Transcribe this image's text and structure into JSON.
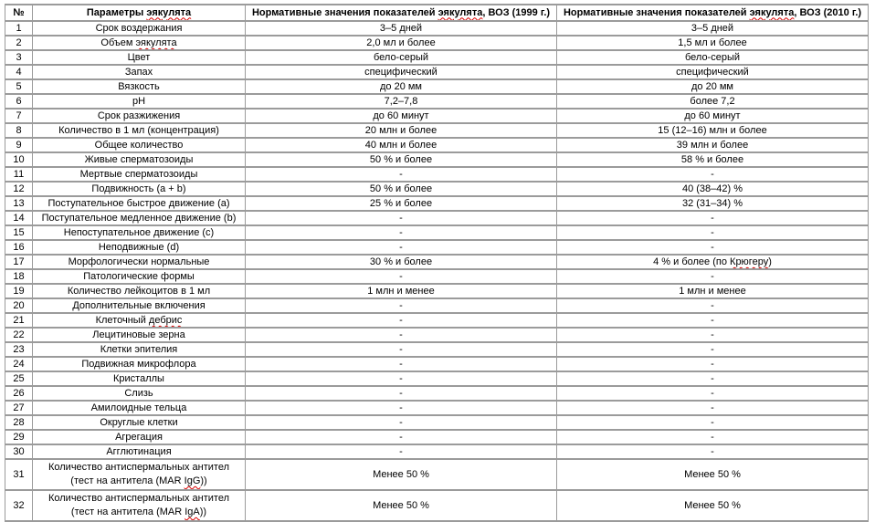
{
  "table": {
    "headers": {
      "num": "№",
      "param": "Параметры эякулята",
      "who1999": "Нормативные значения показателей эякулята, ВОЗ (1999 г.)",
      "who2010": "Нормативные значения показателей эякулята, ВОЗ (2010 г.)"
    },
    "rows": [
      {
        "num": "1",
        "param": "Срок воздержания",
        "who1999": "3–5 дней",
        "who2010": "3–5 дней"
      },
      {
        "num": "2",
        "param": "Объем эякулята",
        "who1999": "2,0 мл и более",
        "who2010": "1,5 мл и более"
      },
      {
        "num": "3",
        "param": "Цвет",
        "who1999": "бело-серый",
        "who2010": "бело-серый"
      },
      {
        "num": "4",
        "param": "Запах",
        "who1999": "специфический",
        "who2010": "специфический"
      },
      {
        "num": "5",
        "param": "Вязкость",
        "who1999": "до 20 мм",
        "who2010": "до 20 мм"
      },
      {
        "num": "6",
        "param": "pH",
        "who1999": "7,2–7,8",
        "who2010": "более 7,2"
      },
      {
        "num": "7",
        "param": "Срок разжижения",
        "who1999": "до 60 минут",
        "who2010": "до 60 минут"
      },
      {
        "num": "8",
        "param": "Количество в 1 мл (концентрация)",
        "who1999": "20 млн и более",
        "who2010": "15 (12–16) млн и более"
      },
      {
        "num": "9",
        "param": "Общее количество",
        "who1999": "40 млн и более",
        "who2010": "39 млн и более"
      },
      {
        "num": "10",
        "param": "Живые сперматозоиды",
        "who1999": "50 % и более",
        "who2010": "58 % и более"
      },
      {
        "num": "11",
        "param": "Мертвые сперматозоиды",
        "who1999": "-",
        "who2010": "-"
      },
      {
        "num": "12",
        "param": "Подвижность (a + b)",
        "who1999": "50 % и более",
        "who2010": "40 (38–42) %"
      },
      {
        "num": "13",
        "param": "Поступательное быстрое движение (a)",
        "who1999": "25 % и более",
        "who2010": "32 (31–34) %"
      },
      {
        "num": "14",
        "param": "Поступательное медленное движение (b)",
        "who1999": "-",
        "who2010": "-"
      },
      {
        "num": "15",
        "param": "Непоступательное движение (c)",
        "who1999": "-",
        "who2010": "-"
      },
      {
        "num": "16",
        "param": "Неподвижные (d)",
        "who1999": "-",
        "who2010": "-"
      },
      {
        "num": "17",
        "param": "Морфологически нормальные",
        "who1999": "30 % и более",
        "who2010": "4 % и более (по Крюгеру)"
      },
      {
        "num": "18",
        "param": "Патологические формы",
        "who1999": "-",
        "who2010": "-"
      },
      {
        "num": "19",
        "param": "Количество лейкоцитов в 1 мл",
        "who1999": "1 млн и менее",
        "who2010": "1 млн и менее"
      },
      {
        "num": "20",
        "param": "Дополнительные включения",
        "who1999": "-",
        "who2010": "-"
      },
      {
        "num": "21",
        "param": "Клеточный дебрис",
        "who1999": "-",
        "who2010": "-"
      },
      {
        "num": "22",
        "param": "Лецитиновые зерна",
        "who1999": "-",
        "who2010": "-"
      },
      {
        "num": "23",
        "param": "Клетки эпителия",
        "who1999": "-",
        "who2010": "-"
      },
      {
        "num": "24",
        "param": "Подвижная микрофлора",
        "who1999": "-",
        "who2010": "-"
      },
      {
        "num": "25",
        "param": "Кристаллы",
        "who1999": "-",
        "who2010": "-"
      },
      {
        "num": "26",
        "param": "Слизь",
        "who1999": "-",
        "who2010": "-"
      },
      {
        "num": "27",
        "param": "Амилоидные тельца",
        "who1999": "-",
        "who2010": "-"
      },
      {
        "num": "28",
        "param": "Округлые клетки",
        "who1999": "-",
        "who2010": "-"
      },
      {
        "num": "29",
        "param": "Агрегация",
        "who1999": "-",
        "who2010": "-"
      },
      {
        "num": "30",
        "param": "Агглютинация",
        "who1999": "-",
        "who2010": "-"
      },
      {
        "num": "31",
        "param": "Количество антиспермальных антител\n(тест на антитела (MAR IgG))",
        "who1999": "Менее 50 %",
        "who2010": "Менее 50 %",
        "two_line": true
      },
      {
        "num": "32",
        "param": "Количество антиспермальных антител\n(тест на антитела (MAR IgA))",
        "who1999": "Менее 50 %",
        "who2010": "Менее 50 %",
        "two_line": true
      }
    ]
  },
  "spellcheck": {
    "underline_color": "#dd0000",
    "words": [
      "эякулята",
      "дебрис",
      "Крюгеру",
      "IgG",
      "IgA"
    ]
  },
  "style": {
    "border_color": "#9b9b9b",
    "text_color": "#000000",
    "background_color": "#ffffff"
  }
}
